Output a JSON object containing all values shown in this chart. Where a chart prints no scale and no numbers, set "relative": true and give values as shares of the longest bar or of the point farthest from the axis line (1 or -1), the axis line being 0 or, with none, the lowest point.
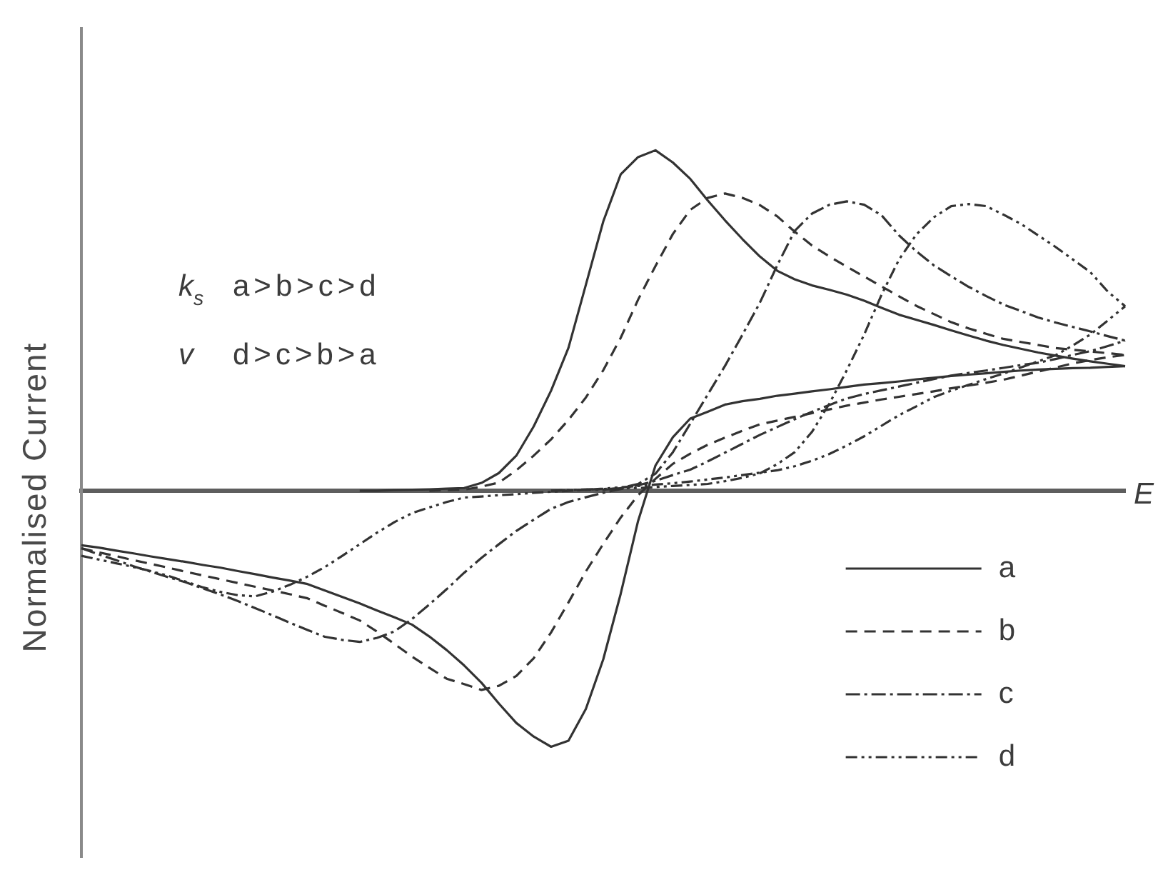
{
  "chart_data": {
    "type": "line",
    "xlabel": "E",
    "ylabel": "Normalised Current",
    "annotations": [
      "k$_{s}$ a>b>c>d",
      "v d>c>b>a"
    ],
    "relative": true,
    "legend": "bottom right",
    "categories": [
      null,
      null,
      null,
      null,
      null,
      null,
      null,
      null,
      null,
      null,
      null,
      null,
      null,
      null,
      null,
      null,
      null,
      null,
      null,
      null,
      null,
      null,
      null,
      null,
      null,
      null,
      null,
      null,
      null,
      null,
      null,
      null,
      null,
      null,
      null,
      null,
      null,
      null,
      null,
      null,
      null,
      null,
      null,
      null,
      null,
      null,
      null,
      null,
      null,
      null,
      null,
      null,
      null,
      null,
      null,
      null,
      null,
      null,
      null,
      null,
      null
    ],
    "series": [
      {
        "name": "a",
        "color": "#333333",
        "line_style": "solid",
        "values": [
          null,
          null,
          null,
          null,
          null,
          null,
          null,
          null,
          null,
          null,
          null,
          null,
          null,
          null,
          null,
          null,
          0,
          0,
          0.002,
          0.003,
          0.004,
          0.006,
          0.008,
          0.023,
          0.052,
          0.103,
          0.189,
          0.294,
          0.42,
          0.605,
          0.791,
          0.929,
          0.98,
          1,
          0.964,
          0.916,
          0.853,
          0.794,
          0.739,
          0.688,
          0.646,
          0.621,
          0.603,
          0.59,
          0.576,
          0.558,
          0.537,
          0.517,
          0.502,
          0.487,
          0.471,
          0.456,
          0.441,
          0.428,
          0.417,
          0.406,
          0.397,
          0.388,
          0.38,
          0.373,
          0.366
        ]
      },
      {
        "color": "#333333",
        "line_style": "solid",
        "values": [
          -0.16,
          -0.167,
          -0.176,
          -0.184,
          -0.193,
          -0.201,
          -0.209,
          -0.218,
          -0.226,
          -0.236,
          -0.245,
          -0.255,
          -0.264,
          -0.274,
          -0.293,
          -0.312,
          -0.331,
          -0.352,
          -0.372,
          -0.393,
          -0.428,
          -0.468,
          -0.513,
          -0.564,
          -0.625,
          -0.682,
          -0.722,
          -0.752,
          -0.734,
          -0.641,
          -0.495,
          -0.303,
          -0.089,
          0.074,
          0.157,
          0.212,
          0.232,
          0.253,
          0.263,
          0.27,
          0.279,
          0.285,
          0.292,
          0.298,
          0.305,
          0.312,
          0.316,
          0.321,
          0.327,
          0.332,
          0.337,
          0.341,
          0.345,
          0.349,
          0.353,
          0.356,
          0.358,
          0.36,
          0.361,
          0.364,
          0.366
        ]
      },
      {
        "name": "b",
        "color": "#333333",
        "line_style": "dashed",
        "values": [
          null,
          null,
          null,
          null,
          null,
          null,
          null,
          null,
          null,
          null,
          null,
          null,
          null,
          null,
          null,
          null,
          null,
          null,
          null,
          null,
          0,
          0.002,
          0.003,
          0.012,
          0.024,
          0.06,
          0.103,
          0.151,
          0.208,
          0.274,
          0.354,
          0.449,
          0.561,
          0.66,
          0.754,
          0.825,
          0.86,
          0.873,
          0.86,
          0.839,
          0.806,
          0.761,
          0.72,
          0.688,
          0.658,
          0.629,
          0.6,
          0.571,
          0.543,
          0.519,
          0.495,
          0.477,
          0.461,
          0.446,
          0.437,
          0.428,
          0.419,
          0.414,
          0.409,
          0.404,
          0.399
        ]
      },
      {
        "color": "#333333",
        "line_style": "dashed",
        "values": [
          -0.169,
          -0.181,
          -0.192,
          -0.204,
          -0.215,
          -0.226,
          -0.238,
          -0.249,
          -0.26,
          -0.271,
          -0.282,
          -0.293,
          -0.304,
          -0.316,
          -0.338,
          -0.359,
          -0.381,
          -0.414,
          -0.45,
          -0.487,
          -0.52,
          -0.552,
          -0.568,
          -0.585,
          -0.573,
          -0.544,
          -0.492,
          -0.416,
          -0.328,
          -0.237,
          -0.156,
          -0.079,
          -0.013,
          0.035,
          0.079,
          0.109,
          0.135,
          0.156,
          0.176,
          0.195,
          0.206,
          0.217,
          0.228,
          0.239,
          0.25,
          0.259,
          0.268,
          0.276,
          0.284,
          0.292,
          0.301,
          0.309,
          0.317,
          0.326,
          0.338,
          0.35,
          0.362,
          0.374,
          0.384,
          0.392,
          0.399
        ]
      },
      {
        "name": "c",
        "color": "#333333",
        "line_style": "dashdot",
        "values": [
          null,
          null,
          null,
          null,
          null,
          null,
          null,
          null,
          null,
          null,
          null,
          null,
          null,
          null,
          null,
          null,
          null,
          null,
          null,
          null,
          null,
          null,
          null,
          null,
          null,
          null,
          null,
          0,
          0.001,
          0.003,
          0.003,
          0.008,
          0.02,
          0.05,
          0.113,
          0.197,
          0.282,
          0.367,
          0.458,
          0.552,
          0.662,
          0.763,
          0.814,
          0.84,
          0.85,
          0.84,
          0.809,
          0.75,
          0.703,
          0.662,
          0.63,
          0.599,
          0.572,
          0.547,
          0.528,
          0.509,
          0.494,
          0.481,
          0.468,
          0.454,
          0.441
        ]
      },
      {
        "color": "#333333",
        "line_style": "dashdot",
        "values": [
          -0.169,
          -0.187,
          -0.204,
          -0.222,
          -0.238,
          -0.254,
          -0.269,
          -0.287,
          -0.305,
          -0.324,
          -0.345,
          -0.366,
          -0.388,
          -0.409,
          -0.429,
          -0.438,
          -0.444,
          -0.432,
          -0.413,
          -0.377,
          -0.334,
          -0.289,
          -0.241,
          -0.197,
          -0.157,
          -0.118,
          -0.085,
          -0.053,
          -0.033,
          -0.019,
          -0.006,
          0.005,
          0.016,
          0.029,
          0.046,
          0.062,
          0.086,
          0.112,
          0.138,
          0.164,
          0.187,
          0.21,
          0.232,
          0.252,
          0.271,
          0.284,
          0.295,
          0.306,
          0.317,
          0.328,
          0.338,
          0.346,
          0.353,
          0.361,
          0.369,
          0.376,
          0.387,
          0.399,
          0.41,
          0.425,
          0.441
        ]
      },
      {
        "name": "d",
        "color": "#333333",
        "line_style": "dashdotdot",
        "values": [
          null,
          null,
          null,
          null,
          null,
          null,
          null,
          null,
          null,
          null,
          null,
          null,
          null,
          null,
          null,
          null,
          null,
          null,
          null,
          null,
          null,
          null,
          null,
          null,
          null,
          null,
          null,
          0,
          0.002,
          0.004,
          0.005,
          0.007,
          0.008,
          0.011,
          0.014,
          0.017,
          0.02,
          0.028,
          0.038,
          0.051,
          0.078,
          0.113,
          0.173,
          0.256,
          0.354,
          0.459,
          0.576,
          0.679,
          0.753,
          0.803,
          0.836,
          0.842,
          0.836,
          0.811,
          0.784,
          0.75,
          0.716,
          0.679,
          0.642,
          0.585,
          0.542
        ]
      },
      {
        "color": "#333333",
        "line_style": "dashdotdot",
        "values": [
          -0.191,
          -0.202,
          -0.213,
          -0.224,
          -0.236,
          -0.25,
          -0.267,
          -0.284,
          -0.297,
          -0.307,
          -0.31,
          -0.296,
          -0.276,
          -0.252,
          -0.224,
          -0.191,
          -0.157,
          -0.123,
          -0.092,
          -0.066,
          -0.049,
          -0.033,
          -0.02,
          -0.017,
          -0.013,
          -0.01,
          -0.006,
          -0.003,
          0,
          0.003,
          0.006,
          0.01,
          0.014,
          0.018,
          0.022,
          0.027,
          0.033,
          0.039,
          0.046,
          0.053,
          0.06,
          0.072,
          0.088,
          0.108,
          0.133,
          0.16,
          0.191,
          0.222,
          0.248,
          0.275,
          0.294,
          0.311,
          0.328,
          0.344,
          0.362,
          0.38,
          0.398,
          0.427,
          0.459,
          0.5,
          0.542
        ]
      }
    ]
  }
}
